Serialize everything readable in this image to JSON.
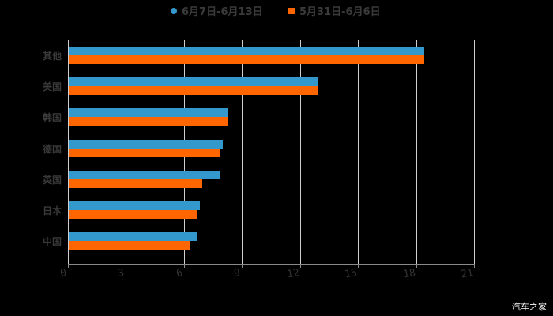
{
  "chart_data": {
    "type": "bar",
    "orientation": "horizontal",
    "title": "",
    "xlabel": "",
    "ylabel": "",
    "xlim": [
      0,
      21
    ],
    "x_ticks": [
      "0",
      "3",
      "6",
      "9",
      "12",
      "15",
      "18",
      "21"
    ],
    "grid": true,
    "legend_position": "top",
    "categories": [
      "其他",
      "美国",
      "韩国",
      "德国",
      "英国",
      "日本",
      "中国"
    ],
    "series": [
      {
        "name": "6月7日-6月13日",
        "color": "#3399cc",
        "values": [
          18.4,
          12.9,
          8.2,
          7.95,
          7.85,
          6.8,
          6.6
        ]
      },
      {
        "name": "5月31日-6月6日",
        "color": "#ff6600",
        "values": [
          18.4,
          12.9,
          8.2,
          7.85,
          6.9,
          6.6,
          6.3
        ]
      }
    ]
  },
  "legend": {
    "series1": "6月7日-6月13日",
    "series2": "5月31日-6月6日"
  },
  "watermark": "汽车之家"
}
